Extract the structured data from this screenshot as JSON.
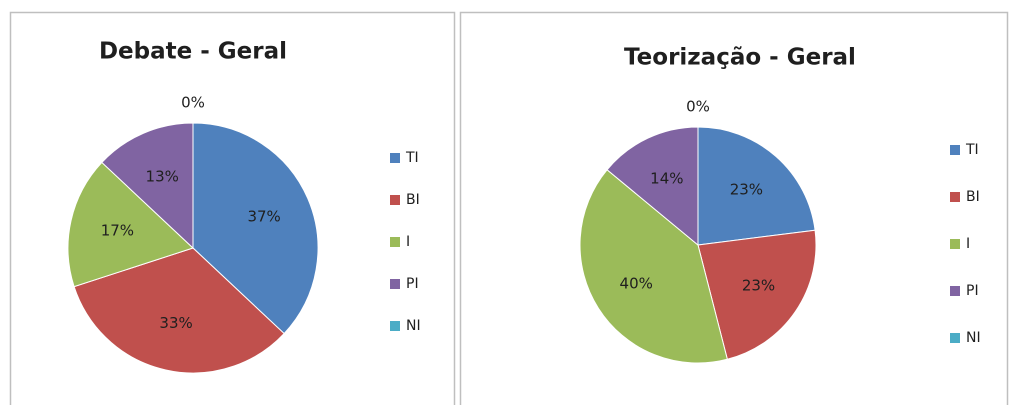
{
  "chart_data": [
    {
      "type": "pie",
      "title": "Debate - Geral",
      "categories": [
        "TI",
        "BI",
        "I",
        "PI",
        "NI"
      ],
      "values": [
        37,
        33,
        17,
        13,
        0
      ],
      "value_labels": [
        "37%",
        "33%",
        "17%",
        "13%",
        "0%"
      ],
      "colors": [
        "#4f81bd",
        "#c0504d",
        "#9bbb59",
        "#8064a2",
        "#4bacc6"
      ],
      "legend": "right"
    },
    {
      "type": "pie",
      "title": "Teorização - Geral",
      "categories": [
        "TI",
        "BI",
        "I",
        "PI",
        "NI"
      ],
      "values": [
        23,
        23,
        40,
        14,
        0
      ],
      "value_labels": [
        "23%",
        "23%",
        "40%",
        "14%",
        "0%"
      ],
      "colors": [
        "#4f81bd",
        "#c0504d",
        "#9bbb59",
        "#8064a2",
        "#4bacc6"
      ],
      "legend": "right"
    }
  ]
}
